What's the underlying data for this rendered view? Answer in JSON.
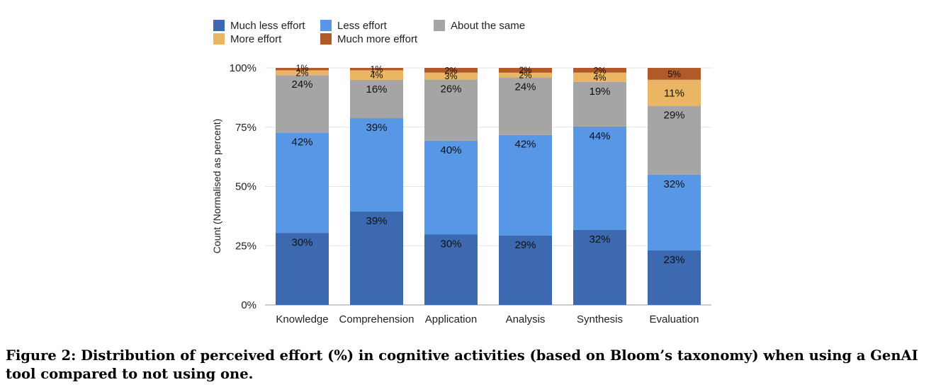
{
  "caption": "Figure 2: Distribution of perceived effort (%) in cognitive activities (based on Bloom’s taxonomy) when using a GenAI tool compared to not using one.",
  "chart_data": {
    "type": "bar",
    "stacked": true,
    "normalized": true,
    "title": "",
    "xlabel": "",
    "ylabel": "Count (Normalised as percent)",
    "ylim": [
      0,
      100
    ],
    "yticks": [
      "0%",
      "25%",
      "50%",
      "75%",
      "100%"
    ],
    "grid": true,
    "legend_position": "top",
    "categories": [
      "Knowledge",
      "Comprehension",
      "Application",
      "Analysis",
      "Synthesis",
      "Evaluation"
    ],
    "series": [
      {
        "name": "Much less effort",
        "color": "#3c69b0",
        "values": [
          30,
          39,
          30,
          29,
          32,
          23
        ],
        "labels": [
          "30%",
          "39%",
          "30%",
          "29%",
          "32%",
          "23%"
        ]
      },
      {
        "name": "Less effort",
        "color": "#5797e6",
        "values": [
          42,
          39,
          40,
          42,
          44,
          32
        ],
        "labels": [
          "42%",
          "39%",
          "40%",
          "42%",
          "44%",
          "32%"
        ]
      },
      {
        "name": "About the same",
        "color": "#a5a5a5",
        "values": [
          24,
          16,
          26,
          24,
          19,
          29
        ],
        "labels": [
          "24%",
          "16%",
          "26%",
          "24%",
          "19%",
          "29%"
        ]
      },
      {
        "name": "More effort",
        "color": "#ebb663",
        "values": [
          2,
          4,
          3,
          2,
          4,
          11
        ],
        "labels": [
          "2%",
          "4%",
          "3%",
          "2%",
          "4%",
          "11%"
        ]
      },
      {
        "name": "Much more effort",
        "color": "#b15928",
        "values": [
          1,
          1,
          2,
          2,
          2,
          5
        ],
        "labels": [
          "1%",
          "1%",
          "2%",
          "2%",
          "2%",
          "5%"
        ]
      }
    ]
  }
}
